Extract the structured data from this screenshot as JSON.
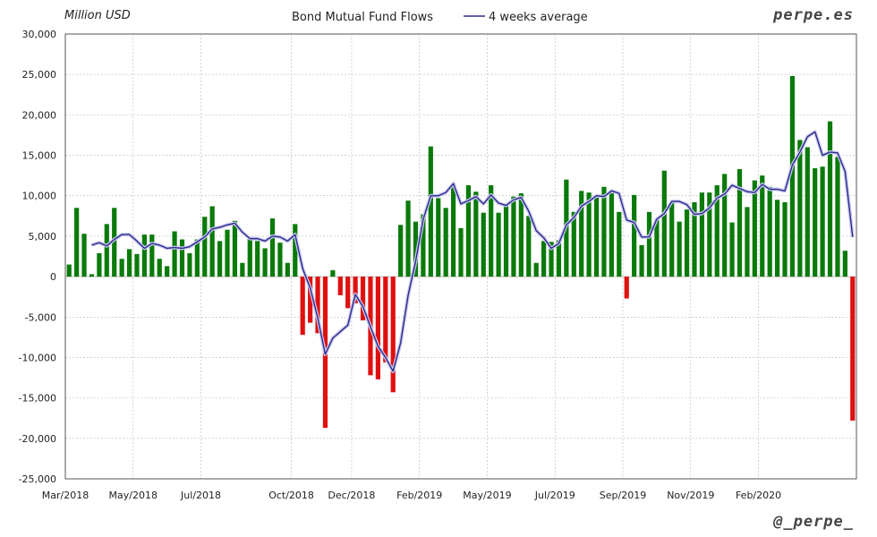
{
  "header": {
    "unit_label": "Million USD",
    "brand": "perpe.es",
    "handle": "@_perpe_"
  },
  "chart_data": {
    "type": "bar",
    "title": "Bond Mutual Fund Flows",
    "ylabel": "Million USD",
    "ylim": [
      -25000,
      30000
    ],
    "yticks": [
      "30,000",
      "25,000",
      "20,000",
      "15,000",
      "10,000",
      "5,000",
      "0",
      "-5,000",
      "-10,000",
      "-15,000",
      "-20,000",
      "-25,000"
    ],
    "xticks": [
      "Mar/2018",
      "May/2018",
      "Jul/2018",
      "Oct/2018",
      "Dec/2018",
      "Feb/2019",
      "May/2019",
      "Jul/2019",
      "Sep/2019",
      "Nov/2019",
      "Feb/2020"
    ],
    "grid": true,
    "legend_position": "top",
    "colors": {
      "positive": "#0a7a0a",
      "negative": "#e01010",
      "line": "#2b2b8a",
      "line_glow": "#c8c8f0",
      "grid": "#b8b8b8"
    },
    "series": [
      {
        "name": "Bond Mutual Fund Flows",
        "kind": "bar",
        "values": [
          1500,
          8500,
          5300,
          300,
          2900,
          6500,
          8500,
          2200,
          3400,
          2800,
          5200,
          5200,
          2200,
          1300,
          5600,
          4600,
          2900,
          4600,
          7400,
          8700,
          4400,
          5800,
          6900,
          1700,
          4700,
          4400,
          3500,
          7200,
          4200,
          1700,
          6500,
          -7200,
          -5700,
          -7000,
          -18700,
          800,
          -2300,
          -3900,
          -3300,
          -5400,
          -12200,
          -12700,
          -10600,
          -14300,
          6400,
          9400,
          6800,
          7700,
          16100,
          9700,
          8500,
          11500,
          6000,
          11300,
          10500,
          7900,
          11300,
          7900,
          8800,
          9900,
          10300,
          7500,
          1700,
          4400,
          4300,
          4500,
          12000,
          8000,
          10600,
          10400,
          10000,
          11100,
          10500,
          8000,
          -2700,
          10100,
          3900,
          8000,
          7100,
          13100,
          9200,
          6800,
          8300,
          9200,
          10400,
          10400,
          11300,
          12700,
          6700,
          13300,
          8600,
          11900,
          12500,
          11100,
          9500,
          9200,
          24800,
          16900,
          16000,
          13400,
          13600,
          19200,
          14800,
          3200,
          -17800
        ]
      },
      {
        "name": "4 weeks average",
        "kind": "line",
        "values": [
          null,
          null,
          null,
          3900,
          4200,
          3800,
          4600,
          5200,
          5200,
          4400,
          3500,
          4100,
          3900,
          3500,
          3600,
          3500,
          3700,
          4300,
          4900,
          5900,
          6100,
          6400,
          6600,
          5500,
          4700,
          4700,
          4400,
          5000,
          4900,
          4400,
          5200,
          1000,
          -1400,
          -5100,
          -9600,
          -7600,
          -6800,
          -6000,
          -2200,
          -3700,
          -6200,
          -8600,
          -10000,
          -11700,
          -8200,
          -2300,
          1900,
          7100,
          10000,
          10000,
          10400,
          11500,
          9000,
          9400,
          9900,
          9000,
          10100,
          9100,
          8800,
          9500,
          9800,
          8100,
          5700,
          4800,
          3500,
          4100,
          6400,
          7300,
          8700,
          9300,
          10000,
          9900,
          10600,
          10300,
          7000,
          6700,
          4900,
          4900,
          7100,
          7800,
          9300,
          9300,
          8900,
          7700,
          7800,
          8500,
          9700,
          10200,
          11300,
          10900,
          10500,
          10400,
          11400,
          10800,
          10800,
          10600,
          13800,
          15400,
          17300,
          17900,
          15000,
          15400,
          15300,
          13000,
          4900
        ]
      }
    ]
  }
}
